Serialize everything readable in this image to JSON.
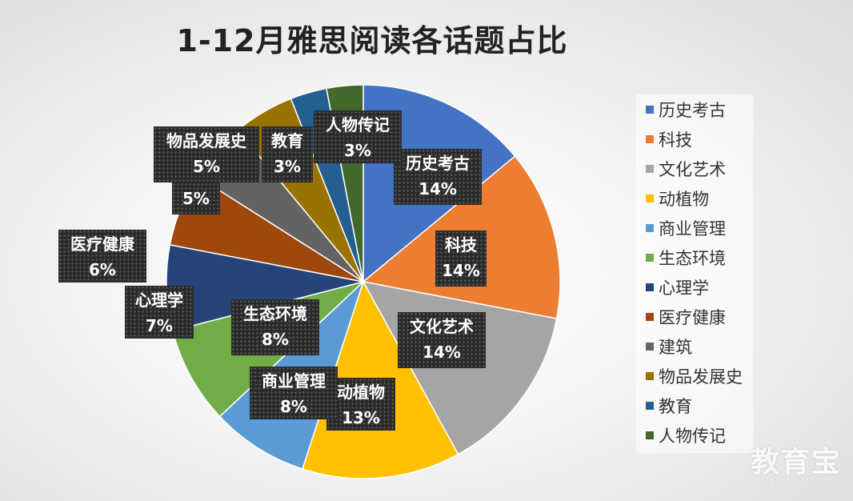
{
  "title": "1-12月雅思阅读各话题占比",
  "chart_data": {
    "type": "pie",
    "title": "1-12月雅思阅读各话题占比",
    "legend_position": "right",
    "slices": [
      {
        "label": "历史考古",
        "value": 14,
        "display": "14%",
        "color": "#4472C4"
      },
      {
        "label": "科技",
        "value": 14,
        "display": "14%",
        "color": "#ED7D31"
      },
      {
        "label": "文化艺术",
        "value": 14,
        "display": "14%",
        "color": "#A5A5A5"
      },
      {
        "label": "动植物",
        "value": 13,
        "display": "13%",
        "color": "#FFC000"
      },
      {
        "label": "商业管理",
        "value": 8,
        "display": "8%",
        "color": "#5B9BD5"
      },
      {
        "label": "生态环境",
        "value": 8,
        "display": "8%",
        "color": "#70AD47"
      },
      {
        "label": "心理学",
        "value": 7,
        "display": "7%",
        "color": "#264478"
      },
      {
        "label": "医疗健康",
        "value": 6,
        "display": "6%",
        "color": "#9E480E"
      },
      {
        "label": "建筑",
        "value": 5,
        "display": "5%",
        "color": "#636363"
      },
      {
        "label": "物品发展史",
        "value": 5,
        "display": "5%",
        "color": "#997300"
      },
      {
        "label": "教育",
        "value": 3,
        "display": "3%",
        "color": "#255E91"
      },
      {
        "label": "人物传记",
        "value": 3,
        "display": "3%",
        "color": "#43682B"
      }
    ]
  },
  "watermark": {
    "main": "教育宝",
    "sub": "JIAOYUBAO.CN"
  }
}
